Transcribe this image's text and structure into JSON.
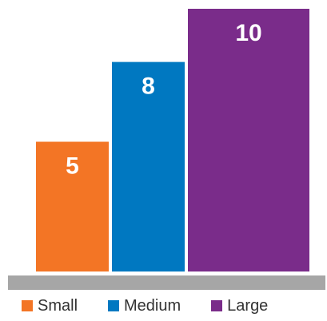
{
  "chart_data": {
    "type": "bar",
    "categories": [
      "Small",
      "Medium",
      "Large"
    ],
    "values": [
      5,
      8,
      10
    ],
    "colors": [
      "#F37525",
      "#0078C1",
      "#7A2C8A"
    ],
    "baseline_color": "#A6A6A6",
    "bar_outline_color": "#ffffff",
    "legend": {
      "position": "bottom",
      "entries": [
        "Small",
        "Medium",
        "Large"
      ]
    },
    "data_labels": [
      "5",
      "8",
      "10"
    ],
    "ylim": [
      0,
      10
    ],
    "grid": false,
    "bars_overlap": true,
    "title": "",
    "xlabel": "",
    "ylabel": ""
  }
}
